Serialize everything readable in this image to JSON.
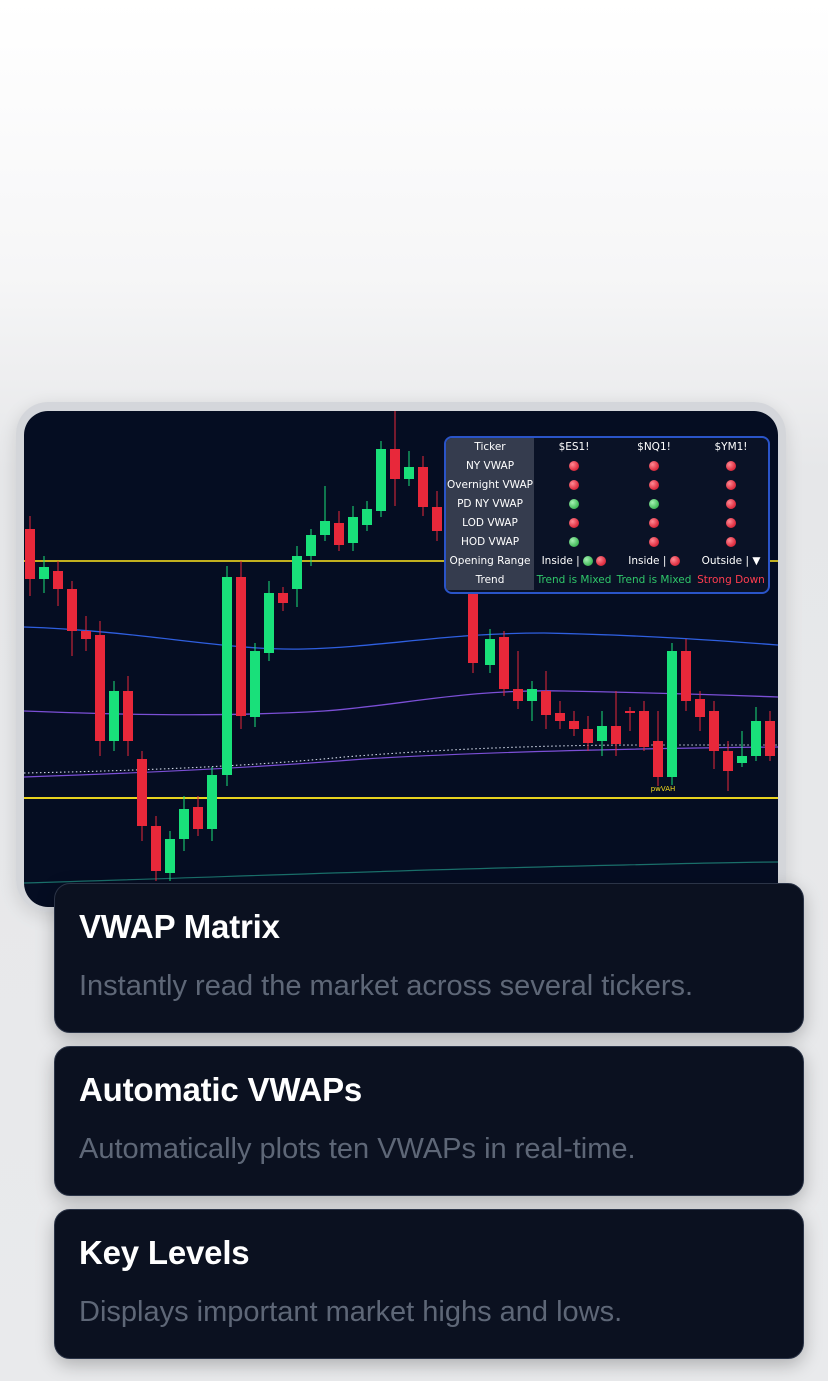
{
  "matrix": {
    "headers": [
      "Ticker",
      "$ES1!",
      "$NQ1!",
      "$YM1!"
    ],
    "rows": [
      {
        "label": "NY VWAP",
        "dots": [
          "red",
          "red",
          "red"
        ]
      },
      {
        "label": "Overnight VWAP",
        "dots": [
          "red",
          "red",
          "red"
        ]
      },
      {
        "label": "PD NY VWAP",
        "dots": [
          "green",
          "green",
          "red"
        ]
      },
      {
        "label": "LOD VWAP",
        "dots": [
          "red",
          "red",
          "red"
        ]
      },
      {
        "label": "HOD VWAP",
        "dots": [
          "green",
          "red",
          "red"
        ]
      }
    ],
    "opening_range": {
      "label": "Opening Range",
      "values": [
        {
          "text": "Inside |",
          "dots": [
            "green",
            "red"
          ]
        },
        {
          "text": "Inside |",
          "dots": [
            "red"
          ]
        },
        {
          "text": "Outside | ▼",
          "dots": []
        }
      ]
    },
    "trend": {
      "label": "Trend",
      "values": [
        {
          "text": "Trend is Mixed",
          "color": "#2fc76a"
        },
        {
          "text": "Trend is Mixed",
          "color": "#2fc76a"
        },
        {
          "text": "Strong Down",
          "color": "#ff3d4f"
        }
      ]
    }
  },
  "chart": {
    "level_label": "pwVAH",
    "colors": {
      "up": "#19e07a",
      "down": "#e8283a",
      "key_level": "#f5dd1f",
      "vwap_blue": "#2f5fe0",
      "vwap_purple": "#7b4fd6",
      "vwap_teal": "#1a6f6a"
    }
  },
  "features": [
    {
      "title": "VWAP Matrix",
      "description": "Instantly read the market across several tickers."
    },
    {
      "title": "Automatic VWAPs",
      "description": "Automatically plots ten VWAPs in real-time."
    },
    {
      "title": "Key Levels",
      "description": "Displays important market highs and lows."
    }
  ]
}
